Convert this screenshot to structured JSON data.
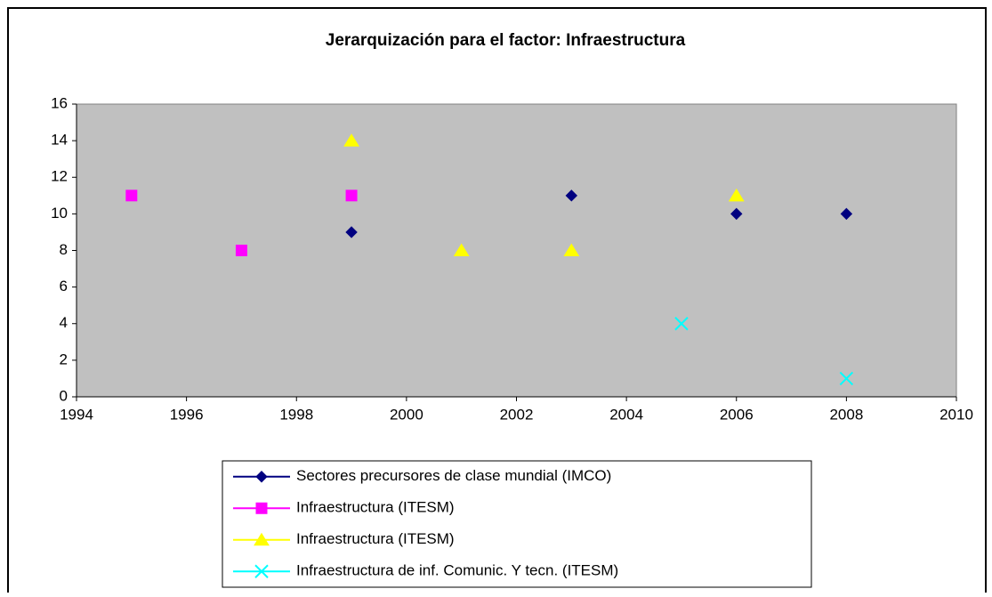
{
  "chart_data": {
    "type": "scatter",
    "title": "Jerarquización para el factor: Infraestructura",
    "xlim": [
      1994,
      2010
    ],
    "xticks": [
      1994,
      1996,
      1998,
      2000,
      2002,
      2004,
      2006,
      2008,
      2010
    ],
    "ylim": [
      0,
      16
    ],
    "yticks": [
      0,
      2,
      4,
      6,
      8,
      10,
      12,
      14,
      16
    ],
    "background": "#c0c0c0",
    "legend": "bottom",
    "series": [
      {
        "name": "Sectores precursores de clase mundial (IMCO)",
        "color": "#000080",
        "marker": "diamond",
        "x": [
          1999,
          2003,
          2006,
          2008
        ],
        "values": [
          9,
          11,
          10,
          10
        ]
      },
      {
        "name": "Infraestructura (ITESM)",
        "color": "#ff00ff",
        "marker": "square",
        "x": [
          1995,
          1997,
          1999
        ],
        "values": [
          11,
          8,
          11
        ]
      },
      {
        "name": "Infraestructura (ITESM)",
        "color": "#ffff00",
        "marker": "triangle",
        "x": [
          1999,
          2001,
          2003,
          2006
        ],
        "values": [
          14,
          8,
          8,
          11
        ]
      },
      {
        "name": "Infraestructura de inf. Comunic. Y tecn. (ITESM)",
        "color": "#00ffff",
        "marker": "x",
        "x": [
          2005,
          2008
        ],
        "values": [
          4,
          1
        ]
      }
    ]
  }
}
